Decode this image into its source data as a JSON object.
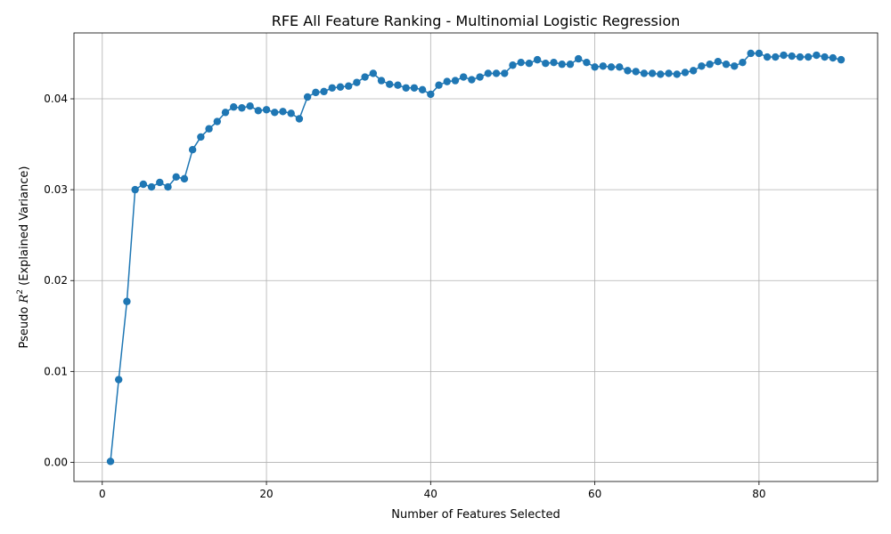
{
  "chart_data": {
    "type": "line",
    "title": "RFE All Feature Ranking - Multinomial Logistic Regression",
    "xlabel": "Number of Features Selected",
    "ylabel_prefix": "Pseudo ",
    "ylabel_symbol": "R",
    "ylabel_exponent": "2",
    "ylabel_suffix": " (Explained Variance)",
    "xlim": [
      -3.45,
      94.45
    ],
    "ylim": [
      -0.00211,
      0.04725
    ],
    "xticks": [
      0,
      20,
      40,
      60,
      80
    ],
    "xtick_labels": [
      "0",
      "20",
      "40",
      "60",
      "80"
    ],
    "yticks": [
      0.0,
      0.01,
      0.02,
      0.03,
      0.04
    ],
    "ytick_labels": [
      "0.00",
      "0.01",
      "0.02",
      "0.03",
      "0.04"
    ],
    "grid": true,
    "marker": "circle",
    "color": "#1f77b4",
    "x": [
      1,
      2,
      3,
      4,
      5,
      6,
      7,
      8,
      9,
      10,
      11,
      12,
      13,
      14,
      15,
      16,
      17,
      18,
      19,
      20,
      21,
      22,
      23,
      24,
      25,
      26,
      27,
      28,
      29,
      30,
      31,
      32,
      33,
      34,
      35,
      36,
      37,
      38,
      39,
      40,
      41,
      42,
      43,
      44,
      45,
      46,
      47,
      48,
      49,
      50,
      51,
      52,
      53,
      54,
      55,
      56,
      57,
      58,
      59,
      60,
      61,
      62,
      63,
      64,
      65,
      66,
      67,
      68,
      69,
      70,
      71,
      72,
      73,
      74,
      75,
      76,
      77,
      78,
      79,
      80,
      81,
      82,
      83,
      84,
      85,
      86,
      87,
      88,
      89,
      90
    ],
    "y": [
      0.0001,
      0.0091,
      0.0177,
      0.03,
      0.0306,
      0.0303,
      0.0308,
      0.0303,
      0.0314,
      0.0312,
      0.0344,
      0.0358,
      0.0367,
      0.0375,
      0.0385,
      0.0391,
      0.039,
      0.0392,
      0.0387,
      0.0388,
      0.0385,
      0.0386,
      0.0384,
      0.0378,
      0.0402,
      0.0407,
      0.0408,
      0.0412,
      0.0413,
      0.0414,
      0.0418,
      0.0424,
      0.0428,
      0.042,
      0.0416,
      0.0415,
      0.0412,
      0.0412,
      0.041,
      0.0405,
      0.0415,
      0.0419,
      0.042,
      0.0424,
      0.0421,
      0.0424,
      0.0428,
      0.0428,
      0.0428,
      0.0437,
      0.044,
      0.0439,
      0.0443,
      0.0439,
      0.044,
      0.0438,
      0.0438,
      0.0444,
      0.044,
      0.0435,
      0.0436,
      0.0435,
      0.0435,
      0.0431,
      0.043,
      0.0428,
      0.0428,
      0.0427,
      0.0428,
      0.0427,
      0.0429,
      0.0431,
      0.0436,
      0.0438,
      0.0441,
      0.0438,
      0.0436,
      0.044,
      0.045,
      0.045,
      0.0446,
      0.0446,
      0.0448,
      0.0447,
      0.0446,
      0.0446,
      0.0448,
      0.0446,
      0.0445,
      0.0443
    ]
  }
}
